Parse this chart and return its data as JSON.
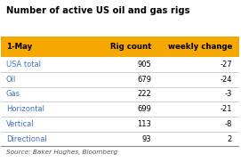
{
  "title": "Number of active US oil and gas rigs",
  "header_date": "1-May",
  "header_col1": "Rig count",
  "header_col2": "weekly change",
  "rows": [
    {
      "label": "USA total",
      "rig_count": "905",
      "weekly_change": "-27"
    },
    {
      "label": "Oil",
      "rig_count": "679",
      "weekly_change": "-24"
    },
    {
      "label": "Gas",
      "rig_count": "222",
      "weekly_change": "-3"
    },
    {
      "label": "Horizontal",
      "rig_count": "699",
      "weekly_change": "-21"
    },
    {
      "label": "Vertical",
      "rig_count": "113",
      "weekly_change": "-8"
    },
    {
      "label": "Directional",
      "rig_count": "93",
      "weekly_change": "2"
    }
  ],
  "source": "Source: Baker Hughes, Bloomberg",
  "header_bg": "#F5A800",
  "title_color": "#000000",
  "label_color": "#4472C4",
  "value_color": "#000000",
  "source_color": "#555555",
  "bg_color": "#FFFFFF",
  "row_line_color": "#AAAAAA",
  "bottom_line_color": "#888888"
}
